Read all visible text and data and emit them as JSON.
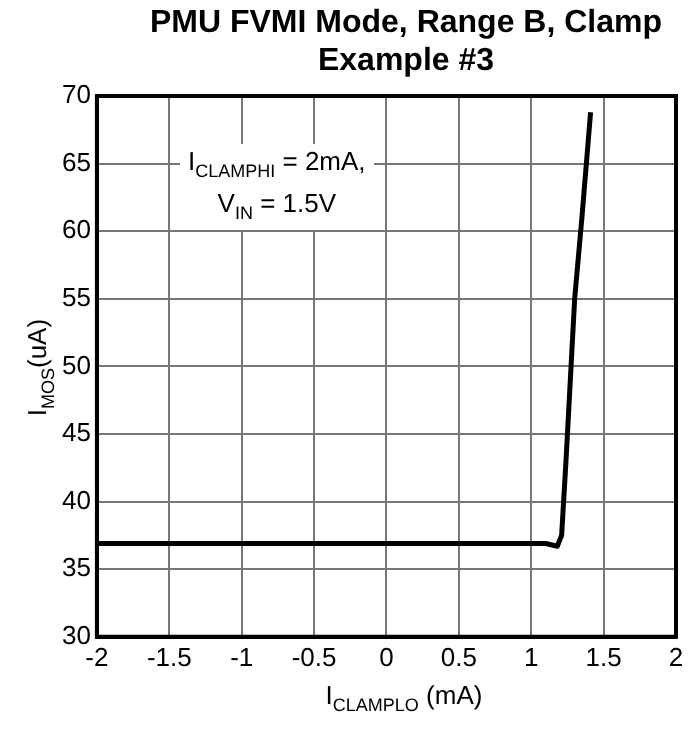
{
  "chart_data": {
    "type": "line",
    "title": "PMU FVMI Mode, Range B, Clamp Example #3",
    "xlabel": "I$_{CLAMPLO}$ (mA)",
    "ylabel": "I$_{MOS}$(uA)",
    "annotations": [
      "I$_{CLAMPHI}$ = 2mA,",
      "V$_{IN}$ = 1.5V"
    ],
    "series": [
      {
        "color": "#000000",
        "x": [
          -2,
          1.1,
          1.18,
          1.21,
          1.24,
          1.3,
          1.35,
          1.41
        ],
        "values": [
          36.9,
          36.9,
          36.7,
          37.5,
          43,
          55,
          61,
          68.8
        ]
      }
    ],
    "xlim": [
      -2,
      2
    ],
    "xticks": [
      -2,
      -1.5,
      -1,
      -0.5,
      0,
      0.5,
      1,
      1.5,
      2
    ],
    "ylim": [
      30,
      70
    ],
    "yticks": [
      30,
      35,
      40,
      45,
      50,
      55,
      60,
      65,
      70
    ],
    "grid": true,
    "legend": false,
    "marker": "none",
    "line_style": "solid"
  }
}
